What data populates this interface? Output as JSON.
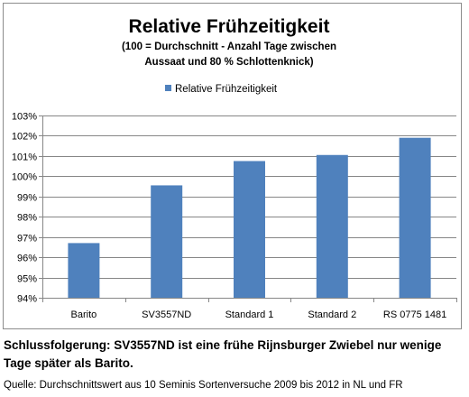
{
  "chart_data": {
    "type": "bar",
    "title": "Relative Frühzeitigkeit",
    "subtitle_lines": [
      "(100 = Durchschnitt  - Anzahl Tage zwischen",
      "Aussaat und 80 % Schlottenknick)"
    ],
    "categories": [
      "Barito",
      "SV3557ND",
      "Standard 1",
      "Standard 2",
      "RS 0775 1481"
    ],
    "series": [
      {
        "name": "Relative Frühzeitigkeit",
        "values": [
          0.967,
          0.9955,
          1.0075,
          1.0105,
          1.019
        ]
      }
    ],
    "ylim": [
      0.94,
      1.03
    ],
    "yticks": [
      0.94,
      0.95,
      0.96,
      0.97,
      0.98,
      0.99,
      1.0,
      1.01,
      1.02,
      1.03
    ],
    "ytick_labels": [
      "94%",
      "95%",
      "96%",
      "97%",
      "98%",
      "99%",
      "100%",
      "101%",
      "102%",
      "103%"
    ],
    "xlabel": "",
    "ylabel": "",
    "grid": true,
    "legend_position": "top",
    "colors": {
      "bar": "#4f81bd",
      "grid": "#868686",
      "axis": "#868686"
    }
  },
  "footer": {
    "conclusion": "Schlussfolgerung: SV3557ND ist eine frühe Rijnsburger Zwiebel nur wenige Tage später als Barito.",
    "source": "Quelle: Durchschnittswert aus 10 Seminis Sortenversuche 2009 bis 2012 in NL und FR"
  }
}
